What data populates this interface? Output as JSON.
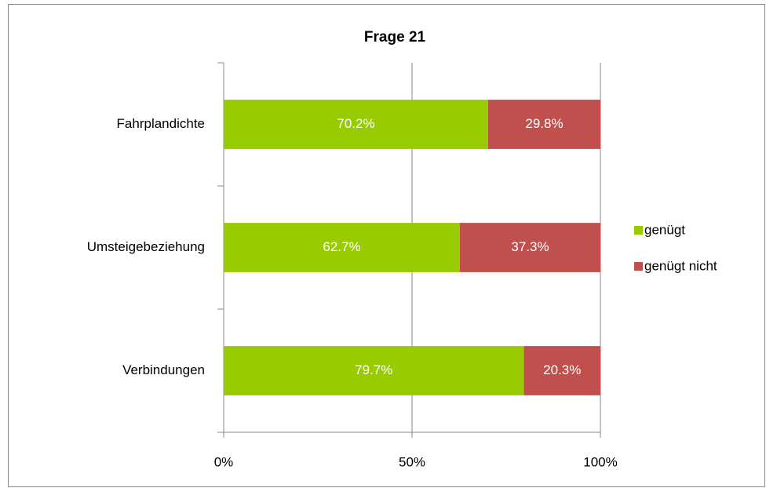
{
  "chart_data": {
    "type": "stacked_bar_horizontal",
    "title": "Frage 21",
    "categories": [
      "Fahrplandichte",
      "Umsteigebeziehung",
      "Verbindungen"
    ],
    "series": [
      {
        "name": "genügt",
        "color": "#99cc00",
        "values": [
          70.2,
          62.7,
          79.7
        ],
        "value_labels": [
          "70.2%",
          "62.7%",
          "79.7%"
        ]
      },
      {
        "name": "genügt nicht",
        "color": "#c0504d",
        "values": [
          29.8,
          37.3,
          20.3
        ],
        "value_labels": [
          "29.8%",
          "37.3%",
          "20.3%"
        ]
      }
    ],
    "xlim": [
      0,
      100
    ],
    "xticks": [
      {
        "value": 0,
        "label": "0%"
      },
      {
        "value": 50,
        "label": "50%"
      },
      {
        "value": 100,
        "label": "100%"
      }
    ],
    "grid": true,
    "legend": "right"
  }
}
